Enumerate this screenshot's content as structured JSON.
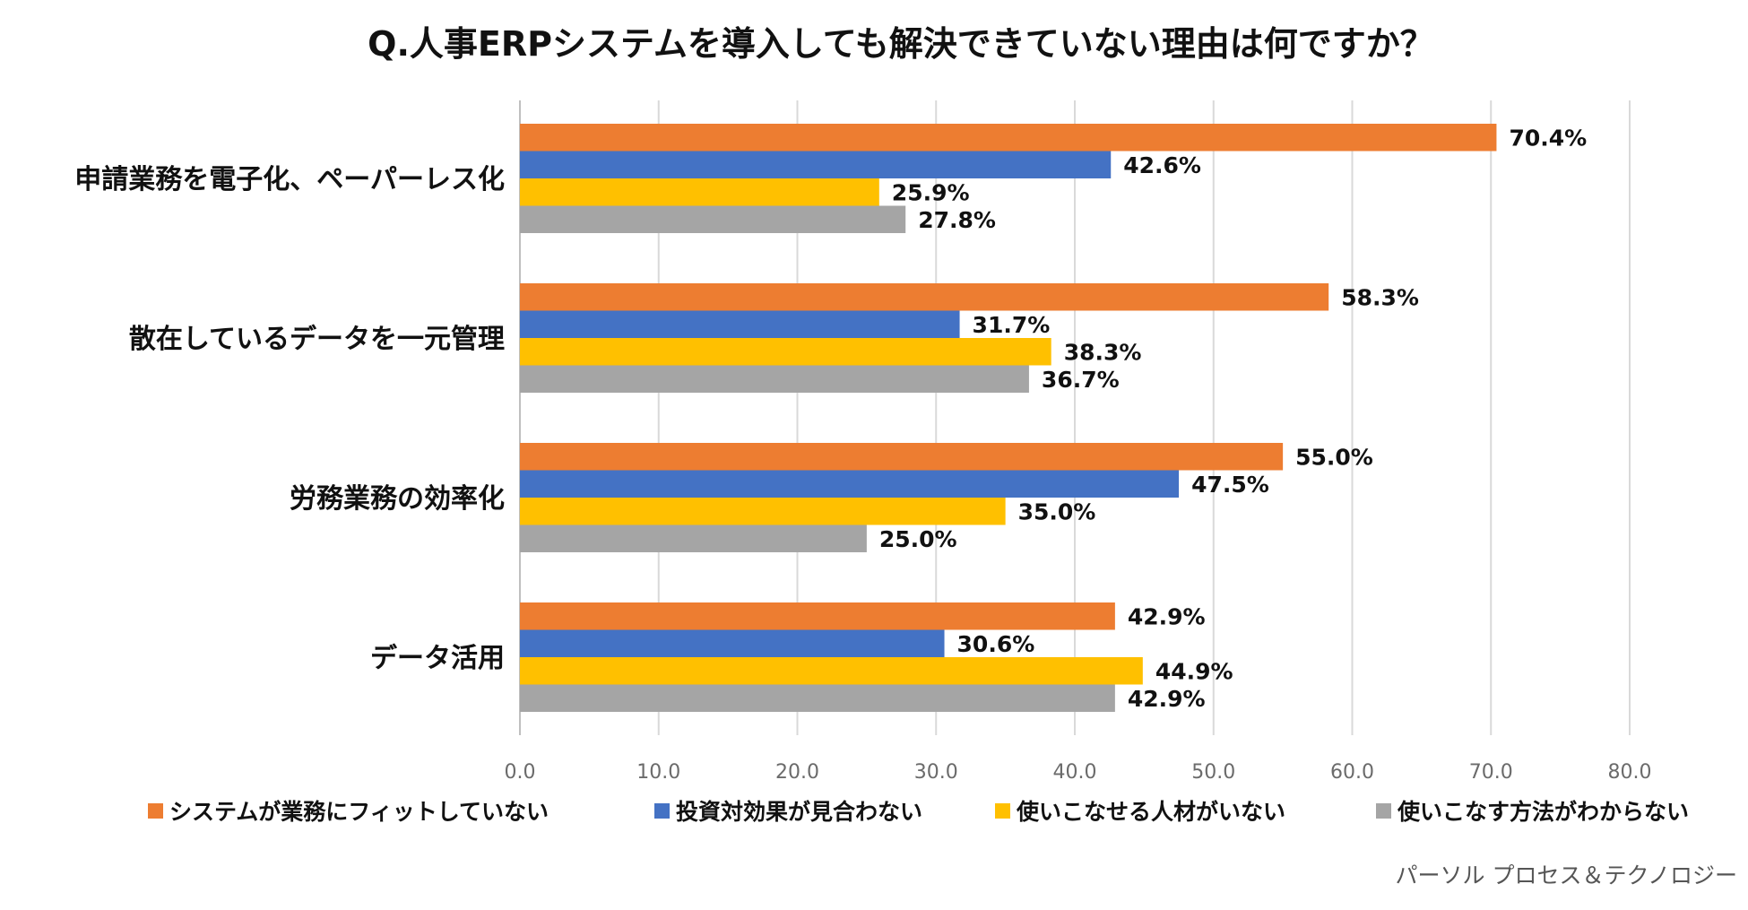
{
  "chart_data": {
    "type": "bar",
    "orientation": "horizontal",
    "title": "Q.人事ERPシステムを導入しても解決できていない理由は何ですか？",
    "categories": [
      "申請業務を電子化、ペーパーレス化",
      "散在しているデータを一元管理",
      "労務業務の効率化",
      "データ活用"
    ],
    "series": [
      {
        "name": "システムが業務にフィットしていない",
        "color": "#ED7D31",
        "values": [
          70.4,
          58.3,
          55.0,
          42.9
        ],
        "labels": [
          "70.4%",
          "58.3%",
          "55.0%",
          "42.9%"
        ]
      },
      {
        "name": "投資対効果が見合わない",
        "color": "#4472C4",
        "values": [
          42.6,
          31.7,
          47.5,
          30.6
        ],
        "labels": [
          "42.6%",
          "31.7%",
          "47.5%",
          "30.6%"
        ]
      },
      {
        "name": "使いこなせる人材がいない",
        "color": "#FFC000",
        "values": [
          25.9,
          38.3,
          35.0,
          44.9
        ],
        "labels": [
          "25.9%",
          "38.3%",
          "35.0%",
          "44.9%"
        ]
      },
      {
        "name": "使いこなす方法がわからない",
        "color": "#A5A5A5",
        "values": [
          27.8,
          36.7,
          25.0,
          42.9
        ],
        "labels": [
          "27.8%",
          "36.7%",
          "25.0%",
          "42.9%"
        ]
      }
    ],
    "xlim": [
      0,
      80
    ],
    "xticks": [
      0,
      10,
      20,
      30,
      40,
      50,
      60,
      70,
      80
    ],
    "xtick_labels": [
      "0.0",
      "10.0",
      "20.0",
      "30.0",
      "40.0",
      "50.0",
      "60.0",
      "70.0",
      "80.0"
    ],
    "grid": true,
    "gridline_color": "#D9D9D9",
    "legend_position": "bottom",
    "xlabel": "",
    "ylabel": ""
  },
  "source": "パーソル プロセス＆テクノロジー"
}
